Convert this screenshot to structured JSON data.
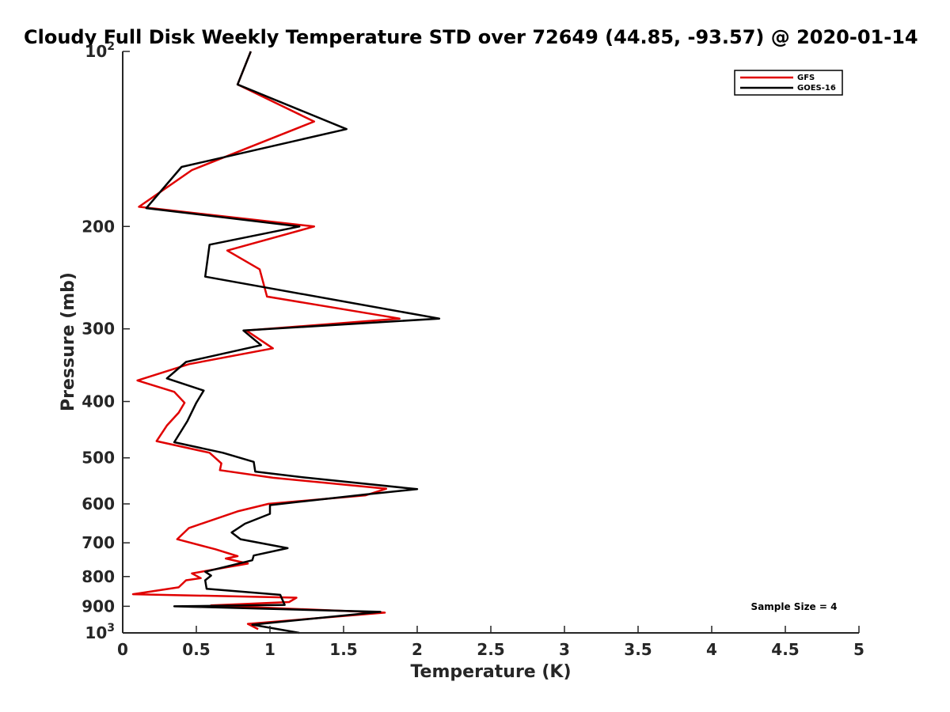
{
  "chart_data": {
    "type": "line",
    "title": "Cloudy Full Disk Weekly Temperature STD over 72649 (44.85, -93.57) @ 2020-01-14",
    "xlabel": "Temperature (K)",
    "ylabel": "Pressure (mb)",
    "xlim": [
      0,
      5
    ],
    "ylim": [
      100,
      1000
    ],
    "y_scale": "log",
    "y_reversed": true,
    "x_ticks": [
      "0",
      "0.5",
      "1",
      "1.5",
      "2",
      "2.5",
      "3",
      "3.5",
      "4",
      "4.5",
      "5"
    ],
    "y_ticks": [
      {
        "value": 100,
        "base": "10",
        "exp": "2"
      },
      {
        "value": 200,
        "label": "200"
      },
      {
        "value": 300,
        "label": "300"
      },
      {
        "value": 400,
        "label": "400"
      },
      {
        "value": 500,
        "label": "500"
      },
      {
        "value": 600,
        "label": "600"
      },
      {
        "value": 700,
        "label": "700"
      },
      {
        "value": 800,
        "label": "800"
      },
      {
        "value": 900,
        "label": "900"
      },
      {
        "value": 1000,
        "base": "10",
        "exp": "3"
      }
    ],
    "grid": false,
    "legend_position": "top-right",
    "series": [
      {
        "name": "GFS",
        "color": "#e00000",
        "points": [
          [
            0.87,
            100
          ],
          [
            0.78,
            114
          ],
          [
            1.3,
            132
          ],
          [
            0.47,
            160
          ],
          [
            0.11,
            185
          ],
          [
            1.3,
            200
          ],
          [
            0.71,
            220
          ],
          [
            0.93,
            237
          ],
          [
            0.98,
            264
          ],
          [
            1.88,
            288
          ],
          [
            0.84,
            302
          ],
          [
            1.02,
            324
          ],
          [
            0.45,
            345
          ],
          [
            0.1,
            368
          ],
          [
            0.35,
            385
          ],
          [
            0.42,
            402
          ],
          [
            0.38,
            418
          ],
          [
            0.3,
            440
          ],
          [
            0.23,
            468
          ],
          [
            0.59,
            490
          ],
          [
            0.67,
            511
          ],
          [
            0.66,
            525
          ],
          [
            1.02,
            541
          ],
          [
            1.79,
            565
          ],
          [
            1.65,
            580
          ],
          [
            0.99,
            600
          ],
          [
            0.78,
            618
          ],
          [
            0.45,
            660
          ],
          [
            0.37,
            690
          ],
          [
            0.63,
            718
          ],
          [
            0.78,
            738
          ],
          [
            0.7,
            745
          ],
          [
            0.85,
            760
          ],
          [
            0.47,
            790
          ],
          [
            0.53,
            805
          ],
          [
            0.43,
            812
          ],
          [
            0.38,
            835
          ],
          [
            0.07,
            858
          ],
          [
            1.18,
            870
          ],
          [
            1.13,
            885
          ],
          [
            0.6,
            897
          ],
          [
            1.78,
            923
          ],
          [
            0.85,
            965
          ],
          [
            0.92,
            985
          ]
        ]
      },
      {
        "name": "GOES-16",
        "color": "#000000",
        "points": [
          [
            0.87,
            100
          ],
          [
            0.78,
            114
          ],
          [
            1.52,
            136
          ],
          [
            0.4,
            158
          ],
          [
            0.16,
            186
          ],
          [
            1.2,
            200
          ],
          [
            0.59,
            215
          ],
          [
            0.56,
            244
          ],
          [
            2.15,
            288
          ],
          [
            0.82,
            302
          ],
          [
            0.94,
            320
          ],
          [
            0.43,
            342
          ],
          [
            0.3,
            365
          ],
          [
            0.55,
            383
          ],
          [
            0.5,
            402
          ],
          [
            0.44,
            432
          ],
          [
            0.35,
            470
          ],
          [
            0.68,
            490
          ],
          [
            0.89,
            508
          ],
          [
            0.9,
            528
          ],
          [
            1.22,
            540
          ],
          [
            2.0,
            566
          ],
          [
            1.65,
            578
          ],
          [
            1.2,
            595
          ],
          [
            1.0,
            603
          ],
          [
            1.0,
            624
          ],
          [
            0.83,
            649
          ],
          [
            0.74,
            672
          ],
          [
            0.8,
            690
          ],
          [
            1.12,
            715
          ],
          [
            0.89,
            736
          ],
          [
            0.88,
            750
          ],
          [
            0.56,
            785
          ],
          [
            0.6,
            797
          ],
          [
            0.56,
            812
          ],
          [
            0.57,
            840
          ],
          [
            1.07,
            860
          ],
          [
            1.1,
            895
          ],
          [
            0.35,
            900
          ],
          [
            1.75,
            920
          ],
          [
            0.88,
            968
          ],
          [
            1.2,
            1000
          ]
        ]
      }
    ],
    "annotations": [
      "Sample Size = 4"
    ]
  }
}
